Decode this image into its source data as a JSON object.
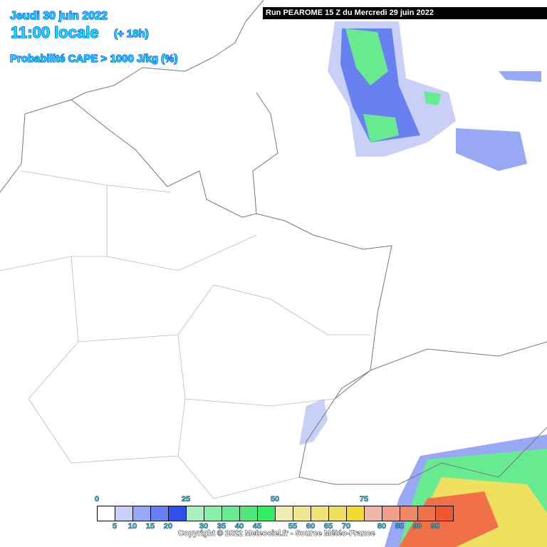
{
  "header": {
    "date": "Jeudi 30 juin 2022",
    "time": "11:00 locale",
    "offset": "(+ 18h)",
    "parameter": "Probabilité CAPE > 1000 J/kg (%)"
  },
  "run_banner": "Run PEAROME 15 Z du Mercredi 29 juin 2022",
  "legend": {
    "top_labels": [
      "0",
      "25",
      "50",
      "75"
    ],
    "bottom_labels": [
      "5",
      "10",
      "15",
      "20",
      "30",
      "35",
      "40",
      "45",
      "55",
      "60",
      "65",
      "70",
      "80",
      "85",
      "90",
      "95"
    ],
    "colors": [
      "#ffffff",
      "#c8d0f8",
      "#98a8f4",
      "#6880f0",
      "#3050ef",
      "#a8f0c0",
      "#88eea8",
      "#68ea90",
      "#50e878",
      "#30ef60",
      "#f0ecb0",
      "#f0e890",
      "#f0e478",
      "#f0e060",
      "#f0dc30",
      "#f0b8a8",
      "#f0a088",
      "#f08868",
      "#f07048",
      "#f05830"
    ]
  },
  "copyright": "Copyright © 2022 Meteociel.fr - Source Météo-France"
}
